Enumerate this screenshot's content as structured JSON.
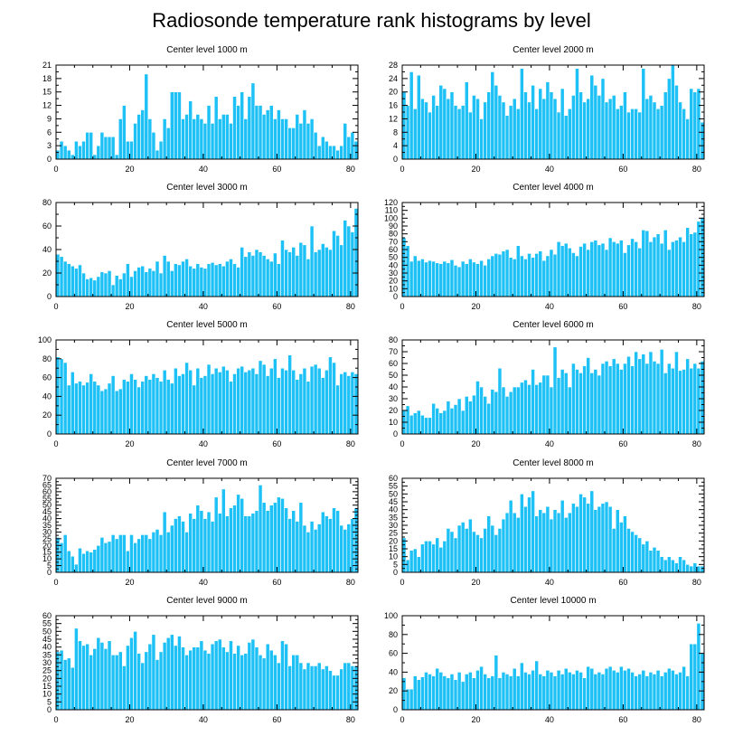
{
  "figure": {
    "title": "Radiosonde temperature rank histograms by level",
    "bar_color": "#1ec1f5",
    "bar_edge_color": "#ffffff",
    "frame_color": "#000000"
  },
  "chart_data": [
    {
      "type": "bar",
      "title": "Center level 1000 m",
      "xlim": [
        0,
        82
      ],
      "ylim": [
        0,
        21
      ],
      "xticks": [
        0,
        20,
        40,
        60,
        80
      ],
      "yticks": [
        0,
        3,
        6,
        9,
        12,
        15,
        18,
        21
      ],
      "x_start": 0,
      "values": [
        2,
        4,
        3,
        2,
        1,
        4,
        3,
        4,
        6,
        6,
        1,
        3,
        6,
        5,
        5,
        5,
        1,
        9,
        12,
        4,
        4,
        8,
        10,
        11,
        19,
        9,
        6,
        2,
        4,
        9,
        7,
        15,
        15,
        15,
        9,
        10,
        13,
        9,
        10,
        9,
        8,
        12,
        8,
        14,
        9,
        10,
        10,
        8,
        14,
        12,
        15,
        9,
        14,
        17,
        12,
        12,
        10,
        11,
        12,
        9,
        11,
        9,
        9,
        7,
        7,
        10,
        8,
        11,
        8,
        9,
        6,
        3,
        5,
        4,
        3,
        3,
        2,
        3,
        8,
        5,
        6,
        4
      ]
    },
    {
      "type": "bar",
      "title": "Center level 2000 m",
      "xlim": [
        0,
        82
      ],
      "ylim": [
        0,
        28
      ],
      "xticks": [
        0,
        20,
        40,
        60,
        80
      ],
      "yticks": [
        0,
        4,
        8,
        12,
        16,
        20,
        24,
        28
      ],
      "x_start": 0,
      "values": [
        20,
        16,
        26,
        15,
        25,
        18,
        17,
        14,
        19,
        16,
        22,
        21,
        18,
        20,
        16,
        15,
        16,
        23,
        14,
        19,
        18,
        12,
        17,
        20,
        26,
        22,
        19,
        17,
        13,
        16,
        18,
        15,
        27,
        20,
        17,
        22,
        15,
        21,
        18,
        23,
        20,
        18,
        14,
        21,
        13,
        15,
        19,
        27,
        20,
        17,
        18,
        25,
        22,
        19,
        24,
        17,
        18,
        19,
        15,
        16,
        20,
        14,
        15,
        15,
        14,
        27,
        18,
        19,
        17,
        15,
        16,
        20,
        24,
        28,
        22,
        17,
        15,
        12,
        21,
        20,
        21,
        11,
        11
      ]
    },
    {
      "type": "bar",
      "title": "Center level 3000 m",
      "xlim": [
        0,
        82
      ],
      "ylim": [
        0,
        80
      ],
      "xticks": [
        0,
        20,
        40,
        60,
        80
      ],
      "yticks": [
        0,
        20,
        40,
        60,
        80
      ],
      "x_start": 0,
      "values": [
        36,
        34,
        30,
        28,
        26,
        24,
        27,
        20,
        15,
        16,
        14,
        17,
        21,
        20,
        22,
        10,
        18,
        15,
        20,
        28,
        17,
        22,
        25,
        26,
        21,
        24,
        22,
        30,
        20,
        35,
        30,
        22,
        28,
        27,
        30,
        32,
        26,
        24,
        28,
        25,
        24,
        28,
        29,
        27,
        28,
        26,
        30,
        32,
        28,
        25,
        42,
        34,
        38,
        35,
        40,
        38,
        35,
        32,
        30,
        37,
        28,
        48,
        40,
        38,
        42,
        35,
        46,
        44,
        32,
        60,
        38,
        40,
        45,
        42,
        40,
        56,
        52,
        44,
        65,
        60,
        55,
        75,
        58
      ]
    },
    {
      "type": "bar",
      "title": "Center level 4000 m",
      "xlim": [
        0,
        82
      ],
      "ylim": [
        0,
        120
      ],
      "xticks": [
        0,
        20,
        40,
        60,
        80
      ],
      "yticks": [
        0,
        10,
        20,
        30,
        40,
        50,
        60,
        70,
        80,
        90,
        100,
        110,
        120
      ],
      "x_start": 0,
      "values": [
        75,
        65,
        45,
        52,
        46,
        48,
        44,
        46,
        45,
        43,
        42,
        45,
        43,
        47,
        40,
        38,
        45,
        42,
        48,
        44,
        42,
        46,
        40,
        48,
        52,
        55,
        54,
        58,
        60,
        50,
        48,
        65,
        52,
        48,
        55,
        50,
        55,
        58,
        46,
        52,
        60,
        54,
        70,
        65,
        68,
        62,
        56,
        52,
        64,
        68,
        60,
        70,
        72,
        66,
        68,
        60,
        75,
        70,
        68,
        72,
        56,
        66,
        74,
        70,
        62,
        85,
        84,
        70,
        76,
        80,
        68,
        85,
        60,
        70,
        72,
        76,
        70,
        88,
        80,
        82,
        96,
        101,
        85
      ]
    },
    {
      "type": "bar",
      "title": "Center level 5000 m",
      "xlim": [
        0,
        82
      ],
      "ylim": [
        0,
        100
      ],
      "xticks": [
        0,
        20,
        40,
        60,
        80
      ],
      "yticks": [
        0,
        20,
        40,
        60,
        80,
        100
      ],
      "x_start": 0,
      "values": [
        82,
        80,
        76,
        52,
        66,
        54,
        56,
        52,
        55,
        64,
        56,
        52,
        46,
        48,
        54,
        62,
        46,
        48,
        58,
        56,
        64,
        58,
        50,
        56,
        62,
        58,
        64,
        60,
        56,
        68,
        58,
        54,
        70,
        62,
        64,
        76,
        68,
        52,
        70,
        60,
        62,
        74,
        64,
        70,
        66,
        72,
        68,
        56,
        64,
        70,
        72,
        66,
        68,
        70,
        64,
        78,
        74,
        62,
        70,
        80,
        60,
        70,
        68,
        84,
        68,
        58,
        64,
        70,
        56,
        72,
        74,
        70,
        60,
        68,
        82,
        76,
        52,
        64,
        66,
        62,
        66,
        64,
        76
      ]
    },
    {
      "type": "bar",
      "title": "Center level 6000 m",
      "xlim": [
        0,
        82
      ],
      "ylim": [
        0,
        80
      ],
      "xticks": [
        0,
        20,
        40,
        60,
        80
      ],
      "yticks": [
        0,
        10,
        20,
        30,
        40,
        50,
        60,
        70,
        80
      ],
      "x_start": 0,
      "values": [
        20,
        24,
        16,
        18,
        20,
        16,
        14,
        14,
        26,
        22,
        18,
        20,
        28,
        22,
        25,
        30,
        20,
        32,
        28,
        33,
        45,
        40,
        32,
        26,
        38,
        36,
        56,
        40,
        32,
        36,
        40,
        40,
        44,
        46,
        42,
        55,
        42,
        44,
        50,
        50,
        40,
        74,
        48,
        55,
        52,
        40,
        60,
        55,
        52,
        58,
        65,
        52,
        55,
        50,
        60,
        62,
        58,
        64,
        60,
        55,
        60,
        66,
        58,
        70,
        64,
        68,
        60,
        70,
        62,
        60,
        72,
        52,
        60,
        56,
        70,
        54,
        55,
        64,
        56,
        60,
        56,
        62,
        62
      ]
    },
    {
      "type": "bar",
      "title": "Center level 7000 m",
      "xlim": [
        0,
        82
      ],
      "ylim": [
        0,
        70
      ],
      "xticks": [
        0,
        20,
        40,
        60,
        80
      ],
      "yticks": [
        0,
        5,
        10,
        15,
        20,
        25,
        30,
        35,
        40,
        45,
        50,
        55,
        60,
        65,
        70
      ],
      "x_start": 0,
      "values": [
        26,
        22,
        28,
        16,
        12,
        6,
        18,
        14,
        16,
        15,
        17,
        20,
        26,
        22,
        23,
        28,
        25,
        28,
        28,
        16,
        28,
        22,
        25,
        28,
        28,
        25,
        30,
        32,
        28,
        45,
        30,
        35,
        40,
        42,
        38,
        30,
        44,
        40,
        50,
        46,
        40,
        45,
        38,
        56,
        44,
        62,
        42,
        48,
        50,
        58,
        55,
        42,
        42,
        44,
        46,
        65,
        52,
        46,
        50,
        52,
        56,
        55,
        48,
        40,
        46,
        38,
        52,
        35,
        30,
        38,
        32,
        36,
        45,
        42,
        40,
        48,
        46,
        35,
        32,
        36,
        40,
        48,
        46
      ]
    },
    {
      "type": "bar",
      "title": "Center level 8000 m",
      "xlim": [
        0,
        82
      ],
      "ylim": [
        0,
        60
      ],
      "xticks": [
        0,
        20,
        40,
        60,
        80
      ],
      "yticks": [
        0,
        5,
        10,
        15,
        20,
        25,
        30,
        35,
        40,
        45,
        50,
        55,
        60
      ],
      "x_start": 0,
      "values": [
        22,
        8,
        14,
        15,
        10,
        18,
        20,
        20,
        18,
        22,
        16,
        20,
        28,
        26,
        22,
        30,
        32,
        28,
        34,
        26,
        24,
        22,
        28,
        36,
        30,
        24,
        28,
        34,
        38,
        46,
        38,
        35,
        50,
        42,
        48,
        52,
        36,
        40,
        38,
        42,
        34,
        40,
        38,
        46,
        35,
        38,
        44,
        42,
        50,
        48,
        44,
        52,
        40,
        42,
        44,
        45,
        42,
        28,
        40,
        32,
        36,
        28,
        26,
        24,
        22,
        18,
        20,
        14,
        16,
        14,
        10,
        8,
        10,
        8,
        6,
        10,
        8,
        5,
        4,
        6,
        4,
        4,
        4
      ]
    },
    {
      "type": "bar",
      "title": "Center level 9000 m",
      "xlim": [
        0,
        82
      ],
      "ylim": [
        0,
        60
      ],
      "xticks": [
        0,
        20,
        40,
        60,
        80
      ],
      "yticks": [
        0,
        5,
        10,
        15,
        20,
        25,
        30,
        35,
        40,
        45,
        50,
        55,
        60
      ],
      "x_start": 0,
      "values": [
        37,
        38,
        32,
        33,
        27,
        52,
        44,
        41,
        42,
        35,
        39,
        46,
        43,
        39,
        44,
        35,
        35,
        37,
        28,
        41,
        46,
        50,
        36,
        30,
        37,
        42,
        48,
        32,
        37,
        43,
        46,
        48,
        41,
        47,
        40,
        35,
        38,
        40,
        40,
        44,
        38,
        36,
        42,
        44,
        45,
        40,
        37,
        44,
        36,
        41,
        35,
        36,
        43,
        45,
        40,
        35,
        33,
        42,
        38,
        35,
        30,
        44,
        42,
        28,
        35,
        35,
        30,
        26,
        30,
        28,
        28,
        30,
        26,
        28,
        25,
        22,
        22,
        26,
        30,
        30,
        28,
        28,
        28
      ]
    },
    {
      "type": "bar",
      "title": "Center level 10000 m",
      "xlim": [
        0,
        82
      ],
      "ylim": [
        0,
        100
      ],
      "xticks": [
        0,
        20,
        40,
        60,
        80
      ],
      "yticks": [
        0,
        20,
        40,
        60,
        80,
        100
      ],
      "x_start": 0,
      "values": [
        34,
        22,
        22,
        36,
        32,
        35,
        40,
        38,
        36,
        44,
        40,
        36,
        34,
        38,
        32,
        40,
        30,
        38,
        40,
        34,
        42,
        46,
        38,
        34,
        36,
        58,
        34,
        40,
        38,
        36,
        44,
        36,
        50,
        40,
        38,
        42,
        52,
        38,
        36,
        42,
        40,
        36,
        42,
        38,
        44,
        40,
        38,
        42,
        40,
        34,
        46,
        44,
        38,
        40,
        38,
        44,
        46,
        42,
        40,
        46,
        42,
        44,
        40,
        36,
        38,
        42,
        36,
        40,
        38,
        42,
        36,
        40,
        44,
        42,
        38,
        40,
        46,
        36,
        70,
        70,
        92,
        60,
        60
      ]
    }
  ]
}
